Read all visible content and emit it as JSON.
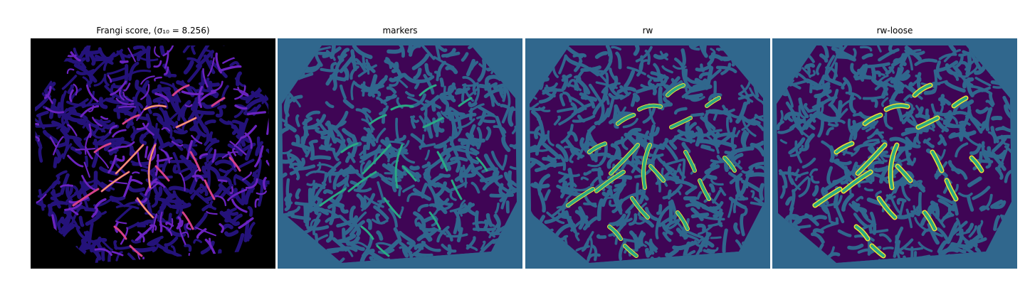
{
  "panels": [
    {
      "title": "Frangi score, (σ₁₀ = 8.256)",
      "kind": "frangi"
    },
    {
      "title": "markers",
      "kind": "markers"
    },
    {
      "title": "rw",
      "kind": "rw"
    },
    {
      "title": "rw-loose",
      "kind": "rw-loose"
    }
  ],
  "colors": {
    "frangi_background": "#000000",
    "frangi_dark": "#24127a",
    "frangi_mid": "#6b23c0",
    "frangi_ridge": "#d6418a",
    "frangi_hot": "#f8c064",
    "label_background": "#30678d",
    "label_dark": "#3f0555",
    "label_marker": "#2aaa84",
    "label_bright": "#f2e42c"
  }
}
